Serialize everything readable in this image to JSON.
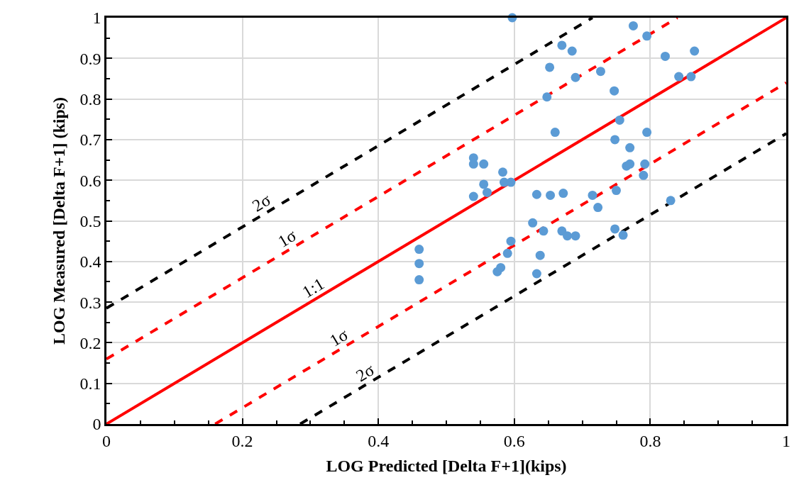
{
  "chart_data": {
    "type": "scatter",
    "xlabel": "LOG Predicted [Delta F+1](kips)",
    "ylabel": "LOG Measured [Delta F+1] (kips)",
    "xlim": [
      0,
      1
    ],
    "ylim": [
      0,
      1
    ],
    "xticks": [
      0,
      0.2,
      0.4,
      0.6,
      0.8,
      1
    ],
    "yticks": [
      0,
      0.1,
      0.2,
      0.3,
      0.4,
      0.5,
      0.6,
      0.7,
      0.8,
      0.9,
      1
    ],
    "grid": true,
    "legend": false,
    "series": [
      {
        "color": "#5b9bd5",
        "marker": "circle",
        "x": [
          0.46,
          0.46,
          0.46,
          0.54,
          0.54,
          0.555,
          0.54,
          0.555,
          0.56,
          0.583,
          0.585,
          0.595,
          0.597,
          0.595,
          0.59,
          0.575,
          0.58,
          0.633,
          0.627,
          0.643,
          0.638,
          0.633,
          0.648,
          0.652,
          0.66,
          0.653,
          0.67,
          0.685,
          0.69,
          0.672,
          0.67,
          0.678,
          0.69,
          0.727,
          0.715,
          0.723,
          0.747,
          0.755,
          0.748,
          0.75,
          0.748,
          0.76,
          0.775,
          0.795,
          0.765,
          0.77,
          0.77,
          0.795,
          0.792,
          0.79,
          0.822,
          0.842,
          0.86,
          0.865,
          0.83
        ],
        "values": [
          0.43,
          0.395,
          0.355,
          0.655,
          0.64,
          0.64,
          0.56,
          0.59,
          0.57,
          0.62,
          0.595,
          0.595,
          1.0,
          0.45,
          0.42,
          0.375,
          0.385,
          0.565,
          0.495,
          0.475,
          0.415,
          0.37,
          0.805,
          0.878,
          0.718,
          0.563,
          0.932,
          0.918,
          0.853,
          0.568,
          0.475,
          0.463,
          0.463,
          0.868,
          0.563,
          0.533,
          0.82,
          0.748,
          0.7,
          0.575,
          0.48,
          0.465,
          0.98,
          0.955,
          0.635,
          0.68,
          0.64,
          0.718,
          0.64,
          0.612,
          0.905,
          0.855,
          0.855,
          0.918,
          0.55
        ]
      },
      {
        "type": "line",
        "name": "2σ",
        "color": "#000000",
        "line_style": "dashed",
        "x": [
          0,
          0.715
        ],
        "values": [
          0.285,
          1
        ]
      },
      {
        "type": "line",
        "name": "1σ",
        "color": "#ff0000",
        "line_style": "dashed",
        "x": [
          0,
          0.84
        ],
        "values": [
          0.16,
          1
        ]
      },
      {
        "type": "line",
        "name": "1:1",
        "color": "#ff0000",
        "line_style": "solid",
        "x": [
          0,
          1
        ],
        "values": [
          0,
          1
        ]
      },
      {
        "type": "line",
        "name": "1σ",
        "color": "#ff0000",
        "line_style": "dashed",
        "x": [
          0.16,
          1
        ],
        "values": [
          0,
          0.84
        ]
      },
      {
        "type": "line",
        "name": "2σ",
        "color": "#000000",
        "line_style": "dashed",
        "x": [
          0.285,
          1
        ],
        "values": [
          0,
          0.715
        ]
      }
    ]
  }
}
